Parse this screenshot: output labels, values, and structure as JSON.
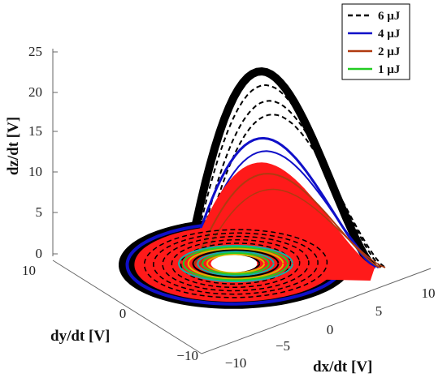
{
  "chart_data": {
    "type": "line",
    "projection": "3d",
    "title": "",
    "xlabel": "dx/dt [V]",
    "ylabel": "dy/dt [V]",
    "zlabel": "dz/dt [V]",
    "x_ticks": [
      "−10",
      "−5",
      "0",
      "5",
      "10"
    ],
    "y_ticks": [
      "−10",
      "0",
      "10"
    ],
    "z_ticks": [
      "0",
      "5",
      "10",
      "15",
      "20",
      "25"
    ],
    "xlim": [
      -10,
      10
    ],
    "ylim": [
      -10,
      10
    ],
    "zlim": [
      0,
      25
    ],
    "grid": false,
    "legend_position": "top-right",
    "series": [
      {
        "name": "6 μJ",
        "color": "#000000",
        "style": "dashed",
        "z_range": [
          0,
          23.5
        ]
      },
      {
        "name": "4 μJ",
        "color": "#1010c8",
        "style": "solid",
        "z_range": [
          0,
          15.5
        ]
      },
      {
        "name": "2 μJ",
        "color": "#b03a10",
        "style": "solid",
        "z_range": [
          0,
          12.5
        ]
      },
      {
        "name": "1 μJ",
        "color": "#22cc22",
        "style": "solid",
        "z_range": [
          0,
          3
        ]
      }
    ],
    "colors": {
      "red_fill": "#ff1a1a",
      "accent_teal": "#0fb3a8",
      "accent_yellow": "#d8b800"
    }
  }
}
